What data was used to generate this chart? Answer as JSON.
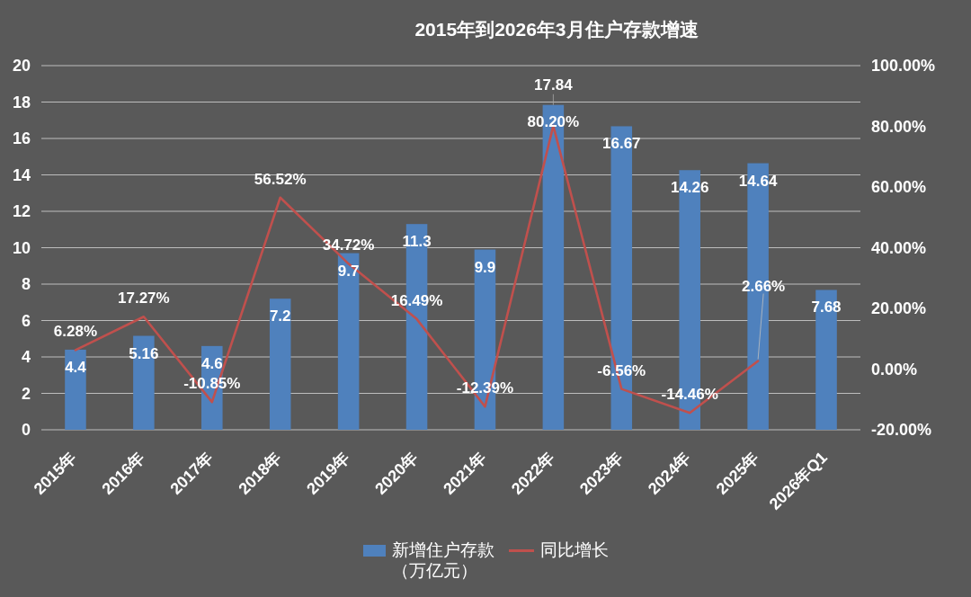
{
  "chart_data": {
    "type": "bar",
    "title": "2015年到2026年3月住户存款增速",
    "categories": [
      "2015年",
      "2016年",
      "2017年",
      "2018年",
      "2019年",
      "2020年",
      "2021年",
      "2022年",
      "2023年",
      "2024年",
      "2025年",
      "2026年Q1"
    ],
    "series": [
      {
        "name": "新增住户存款（万亿元）",
        "color": "#4f81bd",
        "values": [
          4.4,
          5.16,
          4.6,
          7.2,
          9.7,
          11.3,
          9.9,
          17.84,
          16.67,
          14.26,
          14.64,
          7.68
        ],
        "value_labels": [
          "4.4",
          "5.16",
          "4.6",
          "7.2",
          "9.7",
          "11.3",
          "9.9",
          "17.84",
          "16.67",
          "14.26",
          "14.64",
          "7.68"
        ]
      },
      {
        "name": "同比增长",
        "type": "line",
        "axis": "y2",
        "color": "#c0504d",
        "values": [
          6.28,
          17.27,
          -10.85,
          56.52,
          34.72,
          16.49,
          -12.39,
          80.2,
          -6.56,
          -14.46,
          2.66,
          null
        ],
        "value_labels": [
          "6.28%",
          "17.27%",
          "-10.85%",
          "56.52%",
          "34.72%",
          "16.49%",
          "-12.39%",
          "80.20%",
          "-6.56%",
          "-14.46%",
          "2.66%",
          null
        ]
      }
    ],
    "ylim": [
      0,
      20
    ],
    "yticks": [
      0,
      2,
      4,
      6,
      8,
      10,
      12,
      14,
      16,
      18,
      20
    ],
    "y2lim": [
      -20,
      100
    ],
    "y2ticks": [
      {
        "value": -20,
        "label": "-20.00%"
      },
      {
        "value": 0,
        "label": "0.00%"
      },
      {
        "value": 20,
        "label": "20.00%"
      },
      {
        "value": 40,
        "label": "40.00%"
      },
      {
        "value": 60,
        "label": "60.00%"
      },
      {
        "value": 80,
        "label": "80.00%"
      },
      {
        "value": 100,
        "label": "100.00%"
      }
    ],
    "grid": "y",
    "legend": "bottom"
  }
}
